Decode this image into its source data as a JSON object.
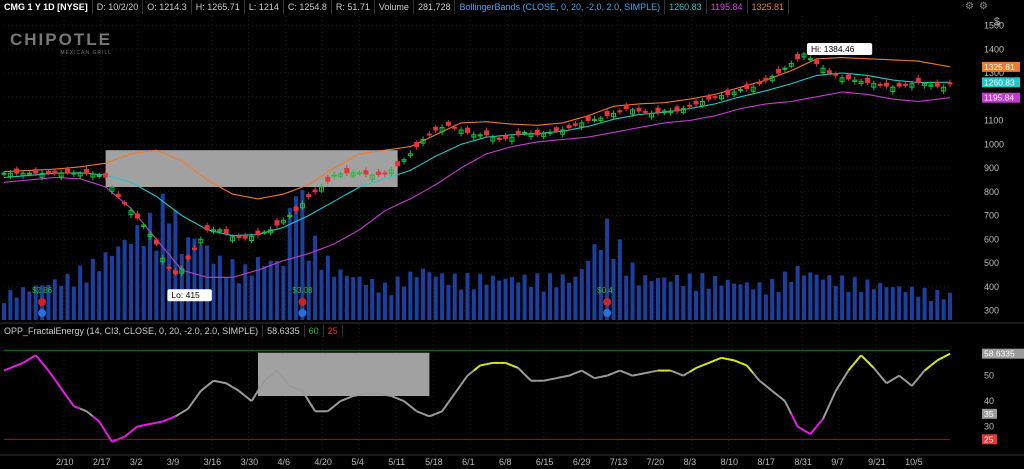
{
  "header": {
    "symbol": "CMG 1 Y 1D [NYSE]",
    "date": "D: 10/2/20",
    "open": "O: 1214.3",
    "high": "H: 1265.71",
    "low": "L: 1214",
    "close": "C: 1254.8",
    "range": "R: 51.71",
    "volume_label": "Volume",
    "volume": "281,728",
    "study": "BollingerBands (CLOSE, 0, 20, -2.0, 2.0, SIMPLE)",
    "mid_value": "1260.83",
    "lower_value": "1195.84",
    "upper_value": "1325.81"
  },
  "logo": {
    "name": "CHIPOTLE",
    "tagline": "MEXICAN GRILL"
  },
  "scale_symbol": "$",
  "lower_header": {
    "study": "OPP_FractalEnergy (14, CI3, CLOSE, 0, 20, -2.0, 2.0, SIMPLE)",
    "value": "58.6335",
    "thr_high": "60",
    "thr_low": "25"
  },
  "colors": {
    "up": "#1fbf3a",
    "down": "#e5343a",
    "volume": "#1c3f9e",
    "bb_mid": "#1ec8c8",
    "bb_upper": "#f07a2a",
    "bb_lower": "#c43ad0",
    "fe_gray": "#9a9a9a",
    "fe_yellow": "#d8e619",
    "fe_magenta": "#e51ee5"
  },
  "chart_data": {
    "type": "candlestick",
    "y_ticks": [
      "1500",
      "1400",
      "1300",
      "1200",
      "1100",
      "1000",
      "900",
      "800",
      "700",
      "600",
      "500",
      "400",
      "300"
    ],
    "ylim": [
      260,
      1540
    ],
    "x_ticks": [
      "2/10",
      "2/17",
      "3/2",
      "3/9",
      "3/16",
      "3/30",
      "4/6",
      "4/20",
      "5/4",
      "5/11",
      "5/18",
      "6/1",
      "6/8",
      "6/15",
      "6/29",
      "7/13",
      "7/20",
      "8/3",
      "8/10",
      "8/17",
      "8/31",
      "9/7",
      "9/21",
      "10/5"
    ],
    "price_labels": {
      "hi": "Hi: 1384.46",
      "lo": "Lo: 415"
    },
    "price_tags": [
      {
        "text": "1325.81",
        "price": 1325.81,
        "color": "#f07a2a"
      },
      {
        "text": "1260.83",
        "price": 1260.83,
        "color": "#1ec8c8"
      },
      {
        "text": "1195.84",
        "price": 1195.84,
        "color": "#c43ad0"
      }
    ],
    "event_labels": [
      "$2.86",
      "$3.08",
      "$0.4"
    ],
    "close_path": [
      [
        0,
        878
      ],
      [
        6,
        878
      ],
      [
        10,
        880
      ],
      [
        14,
        875
      ],
      [
        16,
        862
      ],
      [
        17,
        820
      ],
      [
        18,
        780
      ],
      [
        19,
        750
      ],
      [
        20,
        720
      ],
      [
        21,
        690
      ],
      [
        22,
        660
      ],
      [
        23,
        620
      ],
      [
        24,
        580
      ],
      [
        25,
        520
      ],
      [
        26,
        480
      ],
      [
        27,
        455
      ],
      [
        28,
        475
      ],
      [
        30,
        560
      ],
      [
        32,
        640
      ],
      [
        34,
        640
      ],
      [
        36,
        610
      ],
      [
        38,
        605
      ],
      [
        40,
        620
      ],
      [
        42,
        640
      ],
      [
        44,
        680
      ],
      [
        46,
        720
      ],
      [
        48,
        780
      ],
      [
        50,
        820
      ],
      [
        52,
        870
      ],
      [
        54,
        880
      ],
      [
        56,
        880
      ],
      [
        58,
        870
      ],
      [
        60,
        875
      ],
      [
        62,
        910
      ],
      [
        64,
        960
      ],
      [
        66,
        1020
      ],
      [
        68,
        1060
      ],
      [
        70,
        1080
      ],
      [
        72,
        1060
      ],
      [
        74,
        1040
      ],
      [
        76,
        1040
      ],
      [
        78,
        1020
      ],
      [
        80,
        1030
      ],
      [
        82,
        1050
      ],
      [
        84,
        1040
      ],
      [
        86,
        1050
      ],
      [
        88,
        1060
      ],
      [
        90,
        1080
      ],
      [
        92,
        1100
      ],
      [
        94,
        1110
      ],
      [
        96,
        1130
      ],
      [
        98,
        1150
      ],
      [
        100,
        1140
      ],
      [
        102,
        1130
      ],
      [
        104,
        1140
      ],
      [
        106,
        1140
      ],
      [
        108,
        1160
      ],
      [
        110,
        1180
      ],
      [
        112,
        1200
      ],
      [
        114,
        1210
      ],
      [
        116,
        1230
      ],
      [
        118,
        1240
      ],
      [
        120,
        1270
      ],
      [
        122,
        1300
      ],
      [
        124,
        1340
      ],
      [
        126,
        1380
      ],
      [
        128,
        1340
      ],
      [
        130,
        1300
      ],
      [
        132,
        1280
      ],
      [
        134,
        1270
      ],
      [
        136,
        1260
      ],
      [
        138,
        1250
      ],
      [
        140,
        1240
      ],
      [
        142,
        1250
      ],
      [
        144,
        1260
      ],
      [
        146,
        1250
      ],
      [
        148,
        1240
      ],
      [
        149,
        1254
      ]
    ],
    "bb_mid": [
      [
        0,
        860
      ],
      [
        8,
        878
      ],
      [
        12,
        880
      ],
      [
        16,
        870
      ],
      [
        20,
        840
      ],
      [
        24,
        780
      ],
      [
        28,
        700
      ],
      [
        32,
        640
      ],
      [
        36,
        615
      ],
      [
        40,
        620
      ],
      [
        44,
        650
      ],
      [
        48,
        700
      ],
      [
        52,
        760
      ],
      [
        56,
        820
      ],
      [
        60,
        855
      ],
      [
        64,
        890
      ],
      [
        68,
        950
      ],
      [
        72,
        1000
      ],
      [
        76,
        1030
      ],
      [
        80,
        1040
      ],
      [
        84,
        1045
      ],
      [
        88,
        1055
      ],
      [
        92,
        1075
      ],
      [
        96,
        1105
      ],
      [
        100,
        1125
      ],
      [
        104,
        1135
      ],
      [
        108,
        1150
      ],
      [
        112,
        1170
      ],
      [
        116,
        1200
      ],
      [
        120,
        1225
      ],
      [
        124,
        1255
      ],
      [
        128,
        1290
      ],
      [
        132,
        1300
      ],
      [
        136,
        1290
      ],
      [
        140,
        1270
      ],
      [
        144,
        1260
      ],
      [
        149,
        1261
      ]
    ],
    "bb_upper": [
      [
        0,
        885
      ],
      [
        8,
        895
      ],
      [
        12,
        905
      ],
      [
        16,
        920
      ],
      [
        20,
        960
      ],
      [
        24,
        975
      ],
      [
        28,
        930
      ],
      [
        32,
        850
      ],
      [
        36,
        790
      ],
      [
        40,
        770
      ],
      [
        44,
        790
      ],
      [
        48,
        830
      ],
      [
        52,
        900
      ],
      [
        56,
        960
      ],
      [
        60,
        975
      ],
      [
        64,
        990
      ],
      [
        68,
        1040
      ],
      [
        72,
        1090
      ],
      [
        76,
        1095
      ],
      [
        80,
        1085
      ],
      [
        84,
        1080
      ],
      [
        88,
        1090
      ],
      [
        92,
        1120
      ],
      [
        96,
        1160
      ],
      [
        100,
        1170
      ],
      [
        104,
        1175
      ],
      [
        108,
        1190
      ],
      [
        112,
        1210
      ],
      [
        116,
        1240
      ],
      [
        120,
        1270
      ],
      [
        124,
        1310
      ],
      [
        128,
        1360
      ],
      [
        132,
        1365
      ],
      [
        136,
        1360
      ],
      [
        140,
        1355
      ],
      [
        144,
        1350
      ],
      [
        149,
        1326
      ]
    ],
    "bb_lower": [
      [
        0,
        840
      ],
      [
        8,
        860
      ],
      [
        12,
        855
      ],
      [
        16,
        820
      ],
      [
        20,
        730
      ],
      [
        24,
        600
      ],
      [
        28,
        470
      ],
      [
        32,
        440
      ],
      [
        36,
        440
      ],
      [
        40,
        470
      ],
      [
        44,
        510
      ],
      [
        48,
        540
      ],
      [
        52,
        580
      ],
      [
        56,
        640
      ],
      [
        60,
        720
      ],
      [
        64,
        770
      ],
      [
        68,
        830
      ],
      [
        72,
        900
      ],
      [
        76,
        960
      ],
      [
        80,
        990
      ],
      [
        84,
        1010
      ],
      [
        88,
        1020
      ],
      [
        92,
        1030
      ],
      [
        96,
        1050
      ],
      [
        100,
        1070
      ],
      [
        104,
        1090
      ],
      [
        108,
        1100
      ],
      [
        112,
        1120
      ],
      [
        116,
        1150
      ],
      [
        120,
        1170
      ],
      [
        124,
        1180
      ],
      [
        128,
        1200
      ],
      [
        132,
        1220
      ],
      [
        136,
        1210
      ],
      [
        140,
        1190
      ],
      [
        144,
        1180
      ],
      [
        149,
        1196
      ]
    ],
    "volume_profile": [
      [
        0,
        0.15
      ],
      [
        10,
        0.25
      ],
      [
        15,
        0.35
      ],
      [
        20,
        0.5
      ],
      [
        24,
        0.6
      ],
      [
        26,
        0.75
      ],
      [
        28,
        0.45
      ],
      [
        30,
        0.5
      ],
      [
        34,
        0.35
      ],
      [
        38,
        0.3
      ],
      [
        40,
        0.35
      ],
      [
        44,
        0.35
      ],
      [
        46,
        0.9
      ],
      [
        48,
        0.5
      ],
      [
        52,
        0.3
      ],
      [
        56,
        0.25
      ],
      [
        60,
        0.2
      ],
      [
        66,
        0.3
      ],
      [
        70,
        0.25
      ],
      [
        80,
        0.25
      ],
      [
        90,
        0.25
      ],
      [
        95,
        0.55
      ],
      [
        100,
        0.25
      ],
      [
        110,
        0.25
      ],
      [
        120,
        0.2
      ],
      [
        125,
        0.3
      ],
      [
        130,
        0.25
      ],
      [
        140,
        0.2
      ],
      [
        149,
        0.15
      ]
    ],
    "fractal_energy": [
      [
        0,
        52
      ],
      [
        3,
        55
      ],
      [
        5,
        58
      ],
      [
        7,
        52
      ],
      [
        9,
        45
      ],
      [
        11,
        38
      ],
      [
        13,
        36
      ],
      [
        15,
        32
      ],
      [
        17,
        24
      ],
      [
        19,
        26
      ],
      [
        21,
        30
      ],
      [
        23,
        31
      ],
      [
        25,
        32
      ],
      [
        27,
        34
      ],
      [
        29,
        37
      ],
      [
        31,
        44
      ],
      [
        33,
        48
      ],
      [
        35,
        47
      ],
      [
        37,
        44
      ],
      [
        39,
        40
      ],
      [
        41,
        48
      ],
      [
        43,
        52
      ],
      [
        45,
        46
      ],
      [
        47,
        44
      ],
      [
        49,
        36
      ],
      [
        51,
        36
      ],
      [
        53,
        40
      ],
      [
        55,
        42
      ],
      [
        57,
        43
      ],
      [
        59,
        43
      ],
      [
        61,
        42
      ],
      [
        63,
        40
      ],
      [
        65,
        36
      ],
      [
        67,
        34
      ],
      [
        69,
        36
      ],
      [
        71,
        43
      ],
      [
        73,
        50
      ],
      [
        75,
        54
      ],
      [
        77,
        55
      ],
      [
        79,
        55
      ],
      [
        81,
        53
      ],
      [
        83,
        48
      ],
      [
        85,
        48
      ],
      [
        87,
        49
      ],
      [
        89,
        50
      ],
      [
        91,
        52
      ],
      [
        93,
        49
      ],
      [
        95,
        50
      ],
      [
        97,
        52
      ],
      [
        99,
        50
      ],
      [
        101,
        51
      ],
      [
        103,
        52
      ],
      [
        105,
        52
      ],
      [
        107,
        50
      ],
      [
        109,
        53
      ],
      [
        111,
        55
      ],
      [
        113,
        57
      ],
      [
        115,
        56
      ],
      [
        117,
        54
      ],
      [
        119,
        48
      ],
      [
        121,
        44
      ],
      [
        123,
        40
      ],
      [
        125,
        30
      ],
      [
        127,
        27
      ],
      [
        129,
        33
      ],
      [
        131,
        44
      ],
      [
        133,
        52
      ],
      [
        135,
        58
      ],
      [
        137,
        53
      ],
      [
        139,
        47
      ],
      [
        141,
        50
      ],
      [
        143,
        46
      ],
      [
        145,
        52
      ],
      [
        147,
        56
      ],
      [
        149,
        58.6
      ]
    ],
    "fe_ylim": [
      20,
      64
    ],
    "fe_ticks": [
      "50",
      "40",
      "30"
    ],
    "fe_tags": [
      {
        "text": "58.6335",
        "value": 58.6335,
        "color": "#9a9a9a"
      },
      {
        "text": "35",
        "value": 35,
        "color": "#9a9a9a"
      },
      {
        "text": "25",
        "value": 25,
        "color": "#e33"
      }
    ]
  }
}
